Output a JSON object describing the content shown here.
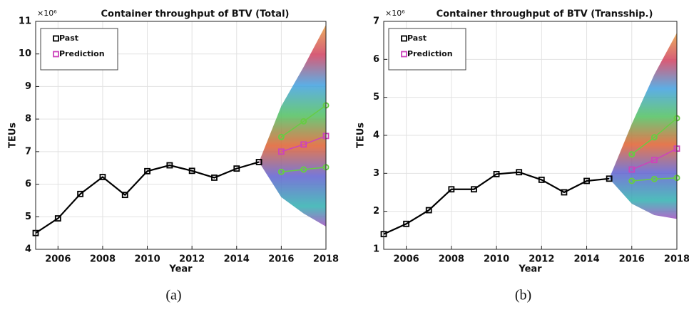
{
  "chart_data": [
    {
      "type": "line",
      "title": "Container throughput of BTV (Total)",
      "x_label": "Year",
      "y_label": "TEUs",
      "y_multiplier": "×10⁶",
      "caption": "(a)",
      "x": [
        2005,
        2006,
        2007,
        2008,
        2009,
        2010,
        2011,
        2012,
        2013,
        2014,
        2015,
        2016,
        2017,
        2018
      ],
      "xlim": [
        2005,
        2018
      ],
      "xticks": [
        2006,
        2008,
        2010,
        2012,
        2014,
        2016,
        2018
      ],
      "ylim": [
        4,
        11
      ],
      "yticks": [
        4,
        5,
        6,
        7,
        8,
        9,
        10,
        11
      ],
      "grid": true,
      "legend": "upper left",
      "series": [
        {
          "name": "Past",
          "color": "#000000",
          "values": [
            4.5,
            4.95,
            5.7,
            6.22,
            5.67,
            6.4,
            6.58,
            6.41,
            6.2,
            6.48,
            6.68,
            null,
            null,
            null
          ]
        },
        {
          "name": "Prediction",
          "color": "#cc44bb",
          "values": [
            null,
            null,
            null,
            null,
            null,
            null,
            null,
            null,
            null,
            null,
            null,
            7.0,
            7.22,
            7.48
          ]
        },
        {
          "color": "#66cc44",
          "values": [
            null,
            null,
            null,
            null,
            null,
            null,
            null,
            null,
            null,
            null,
            null,
            7.45,
            7.93,
            8.42
          ]
        },
        {
          "color": "#66cc44",
          "values": [
            null,
            null,
            null,
            null,
            null,
            null,
            null,
            null,
            null,
            null,
            null,
            6.38,
            6.45,
            6.52
          ]
        }
      ],
      "simulation_band": {
        "x": [
          2015,
          2016,
          2017,
          2018
        ],
        "upper": [
          6.68,
          8.4,
          9.6,
          10.9
        ],
        "lower": [
          6.68,
          5.6,
          5.1,
          4.7
        ]
      }
    },
    {
      "type": "line",
      "title": "Container throughput of BTV (Transship.)",
      "x_label": "Year",
      "y_label": "TEUs",
      "y_multiplier": "×10⁶",
      "caption": "(b)",
      "x": [
        2005,
        2006,
        2007,
        2008,
        2009,
        2010,
        2011,
        2012,
        2013,
        2014,
        2015,
        2016,
        2017,
        2018
      ],
      "xlim": [
        2005,
        2018
      ],
      "xticks": [
        2006,
        2008,
        2010,
        2012,
        2014,
        2016,
        2018
      ],
      "ylim": [
        1,
        7
      ],
      "yticks": [
        1,
        2,
        3,
        4,
        5,
        6,
        7
      ],
      "grid": true,
      "legend": "upper left",
      "series": [
        {
          "name": "Past",
          "color": "#000000",
          "values": [
            1.4,
            1.67,
            2.03,
            2.58,
            2.58,
            2.98,
            3.03,
            2.83,
            2.5,
            2.8,
            2.86,
            null,
            null,
            null
          ]
        },
        {
          "name": "Prediction",
          "color": "#cc44bb",
          "values": [
            null,
            null,
            null,
            null,
            null,
            null,
            null,
            null,
            null,
            null,
            null,
            3.1,
            3.35,
            3.65
          ]
        },
        {
          "color": "#66cc44",
          "values": [
            null,
            null,
            null,
            null,
            null,
            null,
            null,
            null,
            null,
            null,
            null,
            3.5,
            3.95,
            4.45
          ]
        },
        {
          "color": "#66cc44",
          "values": [
            null,
            null,
            null,
            null,
            null,
            null,
            null,
            null,
            null,
            null,
            null,
            2.8,
            2.85,
            2.88
          ]
        }
      ],
      "simulation_band": {
        "x": [
          2015,
          2016,
          2017,
          2018
        ],
        "upper": [
          2.86,
          4.3,
          5.6,
          6.7
        ],
        "lower": [
          2.86,
          2.2,
          1.9,
          1.8
        ]
      }
    }
  ]
}
